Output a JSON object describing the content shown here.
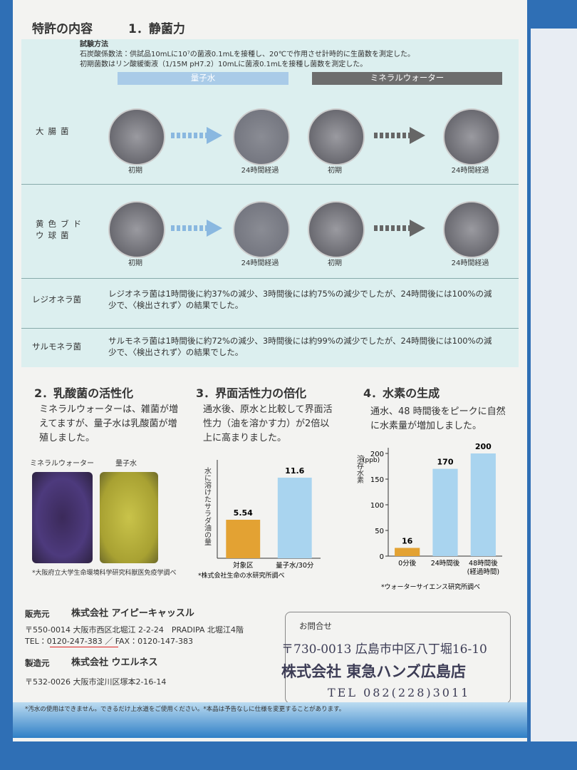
{
  "header": {
    "title": "特許の内容",
    "section": "1．静菌力"
  },
  "test_method": {
    "title": "試験方法",
    "lines": [
      "石炭酸係数法：供試品10mLに10⁷の菌液0.1mLを接種し、20℃で作用させ計時的に生菌数を測定した。",
      "初期菌数はリン酸緩衝液（1/15M pH7.2）10mLに菌液0.1mLを接種し菌数を測定した。"
    ]
  },
  "columns": [
    "量子水",
    "ミネラルウォーター"
  ],
  "bacteria_rows": [
    {
      "name": "大腸菌",
      "labels": [
        "初期",
        "24時間経過",
        "初期",
        "24時間経過"
      ]
    },
    {
      "name": "黄色ブドウ球菌",
      "labels": [
        "初期",
        "24時間経過",
        "初期",
        "24時間経過"
      ]
    }
  ],
  "text_rows": [
    {
      "name": "レジオネラ菌",
      "text": "レジオネラ菌は1時間後に約37%の減少、3時間後には約75%の減少でしたが、24時間後には100%の減少で、〈検出されず〉の結果でした。"
    },
    {
      "name": "サルモネラ菌",
      "text": "サルモネラ菌は1時間後に約72%の減少、3時間後には約99%の減少でしたが、24時間後には100%の減少で、〈検出されず〉の結果でした。"
    }
  ],
  "section2": {
    "title": "2．乳酸菌の活性化",
    "text": "ミネラルウォーターは、雑菌が増えてますが、量子水は乳酸菌が増殖しました。",
    "image_labels": [
      "ミネラルウォーター",
      "量子水"
    ],
    "note": "*大阪府立大学生命環境科学研究科獣医免疫学調べ"
  },
  "section3": {
    "title": "3．界面活性力の倍化",
    "text": "通水後、原水と比較して界面活性力（油を溶かす力）が2倍以上に高まりました。"
  },
  "section4": {
    "title": "4．水素の生成",
    "text": "通水、48 時間後をピークに自然に水素量が増加しました。"
  },
  "chart_data": [
    {
      "type": "bar",
      "y_label": "水に溶けたサラダ油の量",
      "categories": [
        "対象区",
        "量子水/30分"
      ],
      "values": [
        5.54,
        11.6
      ],
      "colors": [
        "#e3a233",
        "#a9d4ef"
      ],
      "source": "*株式会社生命の水研究所調べ"
    },
    {
      "type": "bar",
      "y_label": "溶存水素",
      "y_unit": "(ppb)",
      "categories": [
        "0分後",
        "24時間後",
        "48時間後"
      ],
      "x_label": "(経過時間)",
      "values": [
        16,
        170,
        200
      ],
      "colors": [
        "#e3a233",
        "#a9d4ef",
        "#a9d4ef"
      ],
      "ylim": [
        0,
        200
      ],
      "yticks": [
        0,
        50,
        100,
        150,
        200
      ],
      "source": "*ウォーターサイエンス研究所調べ"
    }
  ],
  "footer": {
    "seller_label": "販売元",
    "seller": "株式会社 アイピーキャッスル",
    "seller_address": "〒550-0014 大阪市西区北堀江 2-2-24　PRADIPA 北堀江4階",
    "tel": "TEL：0120-247-383 ／ FAX：0120-147-383",
    "maker_label": "製造元",
    "maker": "株式会社 ウエルネス",
    "maker_address": "〒532-0026 大阪市淀川区塚本2-16-14",
    "contact_label": "お問合せ",
    "stamp": [
      "〒730-0013 広島市中区八丁堀16-10",
      "株式会社 東急ハンズ広島店",
      "TEL 082(228)3011"
    ],
    "disclaimer": "*汚水の使用はできません。できるだけ上水道をご使用ください。*本品は予告なしに仕様を変更することがあります。"
  }
}
